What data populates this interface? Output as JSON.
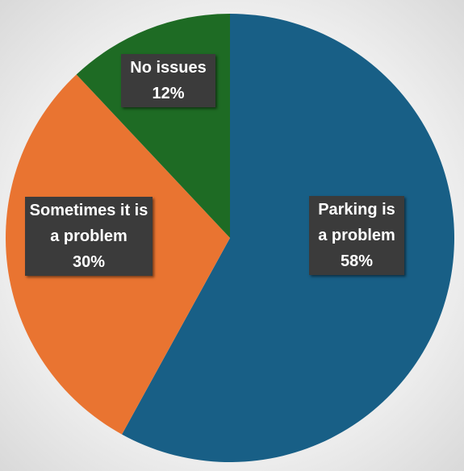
{
  "chart_data": {
    "type": "pie",
    "categories": [
      "Parking is a problem",
      "Sometimes it is a problem",
      "No issues"
    ],
    "values": [
      58,
      30,
      12
    ],
    "value_labels": [
      "58%",
      "30%",
      "12%"
    ],
    "colors": [
      "#185f86",
      "#e97431",
      "#1e6b24"
    ]
  }
}
